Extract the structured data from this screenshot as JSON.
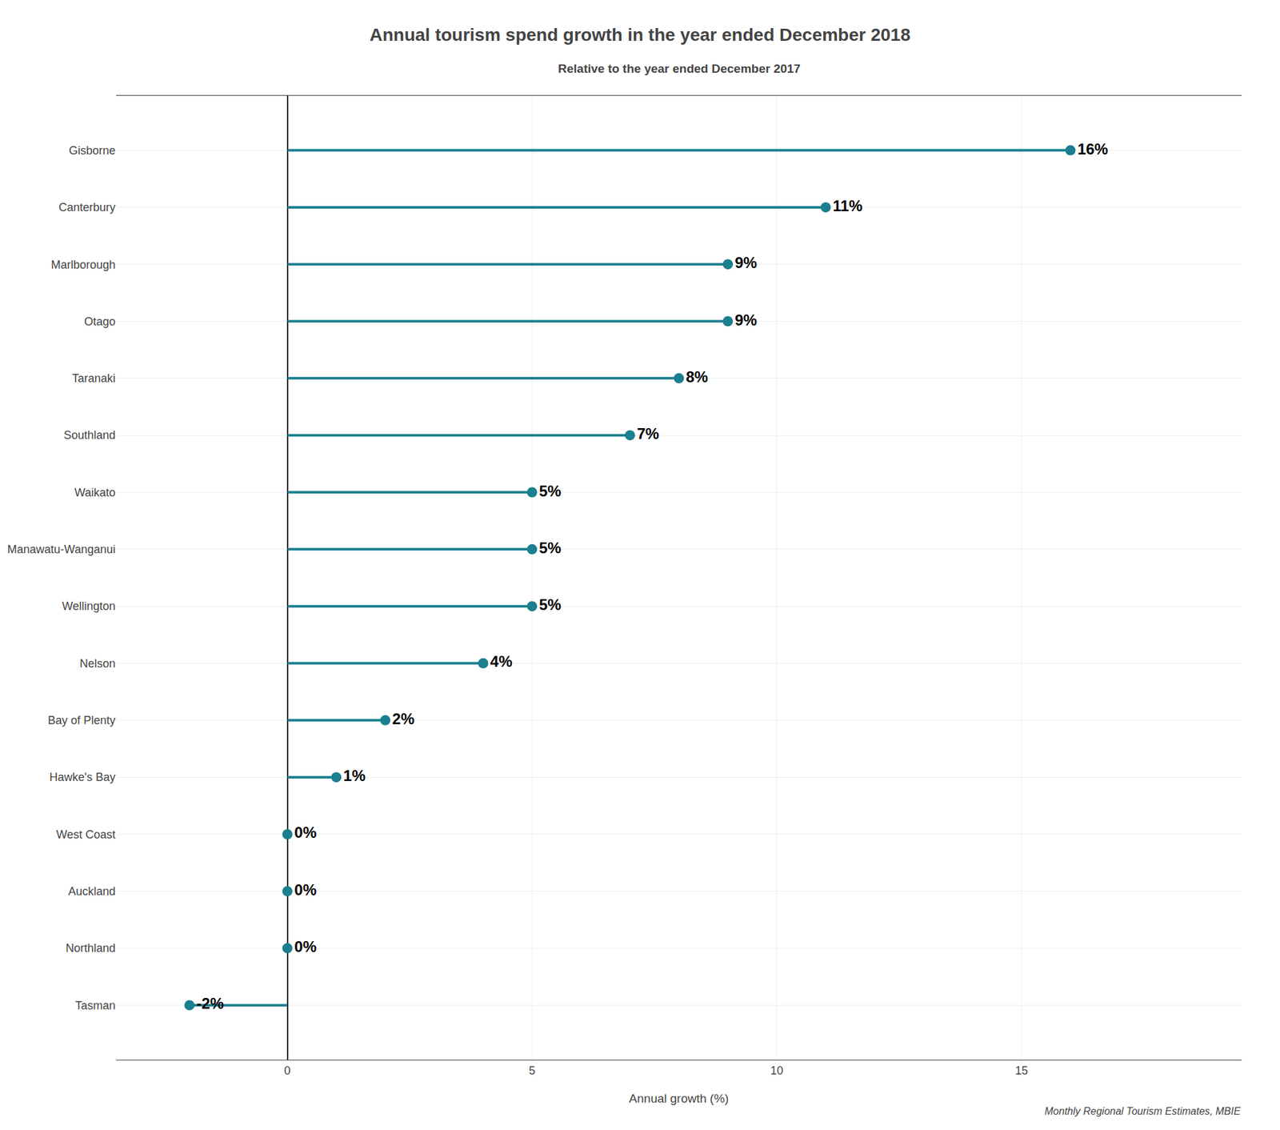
{
  "chart_data": {
    "type": "lollipop",
    "title": "Annual tourism spend growth in the year ended December 2018",
    "subtitle": "Relative to the year ended December 2017",
    "xlabel": "Annual growth (%)",
    "caption": "Monthly Regional Tourism Estimates, MBIE",
    "orientation": "horizontal",
    "categories": [
      "Gisborne",
      "Canterbury",
      "Marlborough",
      "Otago",
      "Taranaki",
      "Southland",
      "Waikato",
      "Manawatu-Wanganui",
      "Wellington",
      "Nelson",
      "Bay of Plenty",
      "Hawke's Bay",
      "West Coast",
      "Auckland",
      "Northland",
      "Tasman"
    ],
    "values": [
      16,
      11,
      9,
      9,
      8,
      7,
      5,
      5,
      5,
      4,
      2,
      1,
      0,
      0,
      0,
      -2
    ],
    "value_labels": [
      "16%",
      "11%",
      "9%",
      "9%",
      "8%",
      "7%",
      "5%",
      "5%",
      "5%",
      "4%",
      "2%",
      "1%",
      "0%",
      "0%",
      "0%",
      "-2%"
    ],
    "data_labels": true,
    "color": "#1a7f8e",
    "xlim": [
      -3.5,
      19.5
    ],
    "xticks": [
      0,
      5,
      10,
      15
    ],
    "grid": true
  }
}
